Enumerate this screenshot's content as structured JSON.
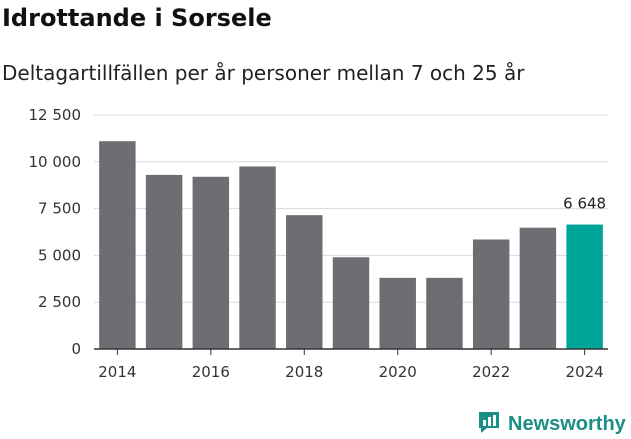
{
  "title": "Idrottande i Sorsele",
  "subtitle": "Deltagartillfällen per år personer mellan 7 och 25 år",
  "brand": {
    "name": "Newsworthy",
    "icon": "newsworthy-logo-icon"
  },
  "colors": {
    "bar": "#6e6d73",
    "highlight": "#00a59a",
    "grid": "#d9d9d9",
    "brand": "#1b8f86"
  },
  "chart_data": {
    "type": "bar",
    "categories": [
      "2014",
      "2015",
      "2016",
      "2017",
      "2018",
      "2019",
      "2020",
      "2021",
      "2022",
      "2023",
      "2024"
    ],
    "values": [
      11100,
      9300,
      9200,
      9750,
      7150,
      4900,
      3800,
      3800,
      5850,
      6480,
      6648
    ],
    "highlight_index": 10,
    "data_labels": [
      {
        "index": 10,
        "text": "6 648"
      }
    ],
    "xticks": [
      "2014",
      "2016",
      "2018",
      "2020",
      "2022",
      "2024"
    ],
    "yticks": [
      0,
      2500,
      5000,
      7500,
      10000,
      12500
    ],
    "ytick_labels": [
      "0",
      "2 500",
      "5 000",
      "7 500",
      "10 000",
      "12 500"
    ],
    "ylim": [
      0,
      12500
    ],
    "grid": true
  }
}
